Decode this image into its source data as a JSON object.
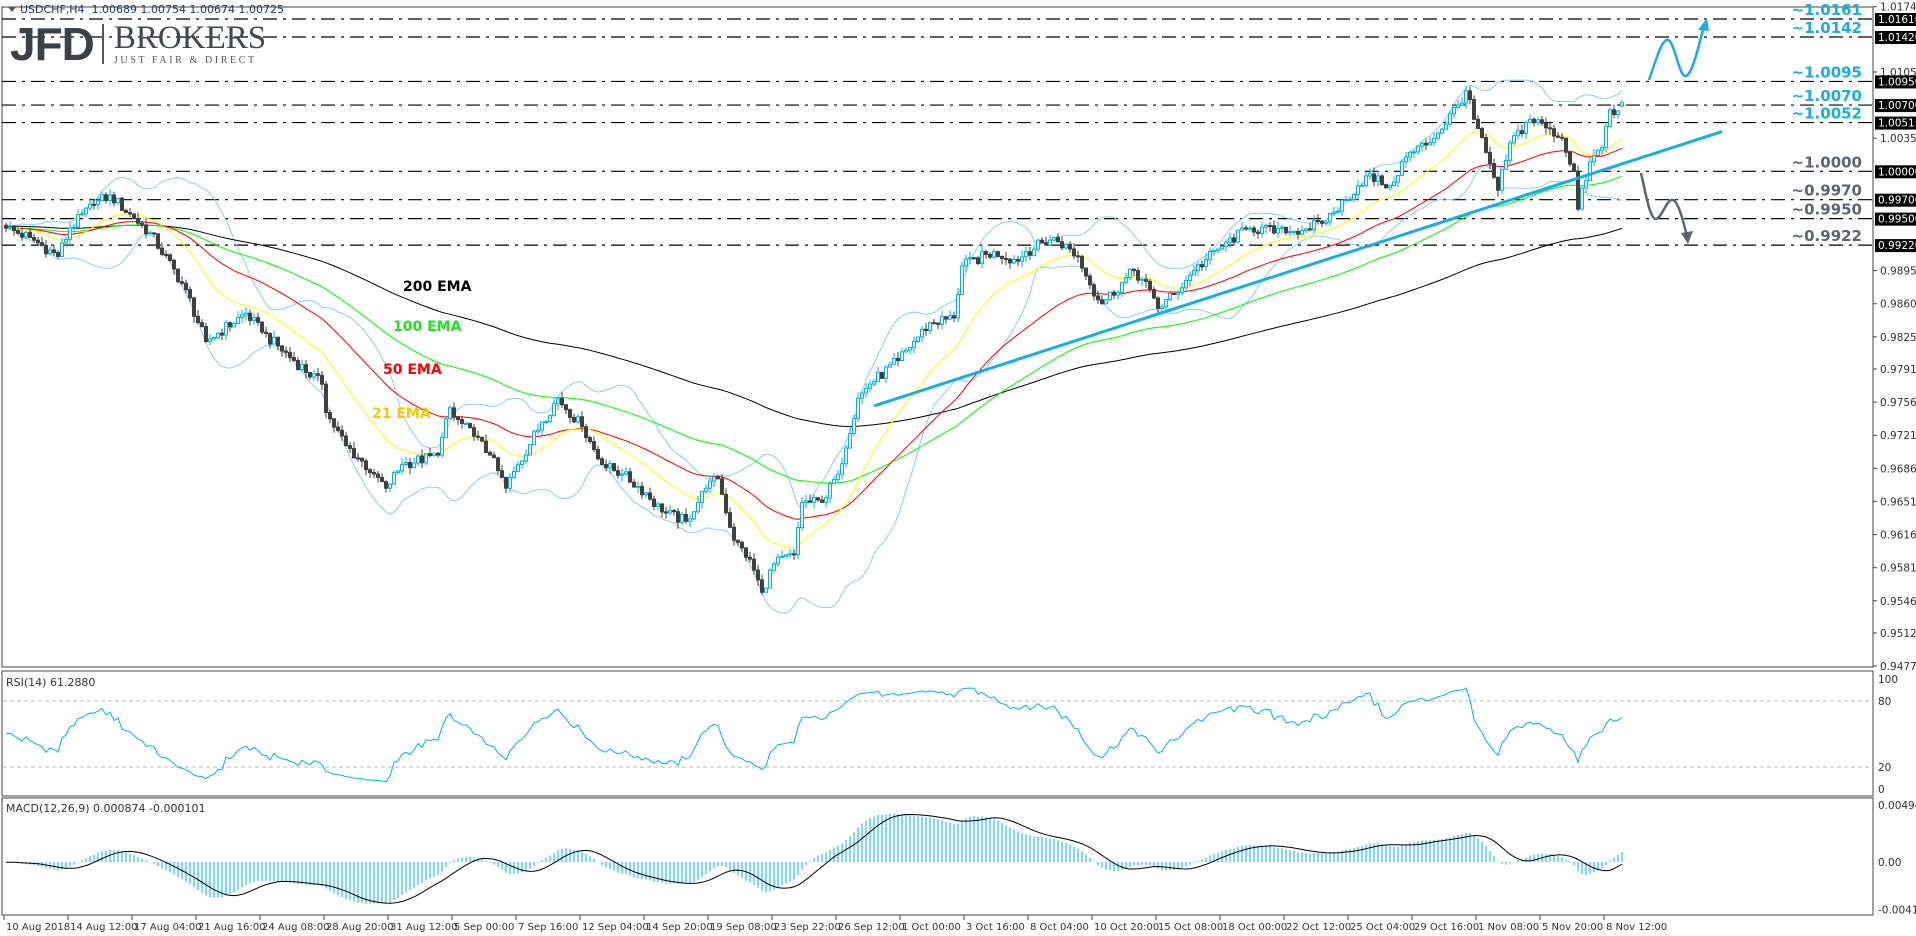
{
  "header": {
    "symbol": "USDCHF,H4",
    "ohlc": "1.00689 1.00754 1.00674 1.00725"
  },
  "logo": {
    "mark": "JFD",
    "name": "BROKERS",
    "tagline": "JUST FAIR & DIRECT"
  },
  "indicators": {
    "rsi_title": "RSI(14) 61.2880",
    "macd_title": "MACD(12,26,9) 0.000874 -0.000101",
    "rsi_axis": [
      "100",
      "80",
      "20",
      "0"
    ],
    "macd_axis": [
      "0.004942",
      "0.00",
      "-0.00413"
    ]
  },
  "ema_labels": [
    {
      "text": "200 EMA",
      "color": "#000000"
    },
    {
      "text": "100 EMA",
      "color": "#22e022"
    },
    {
      "text": "50 EMA",
      "color": "#ff0000"
    },
    {
      "text": "21 EMA",
      "color": "#f5c800"
    }
  ],
  "levels": [
    {
      "label": "~1.0161",
      "box": "1.01610",
      "price": 1.0161,
      "color": "#1aaedb"
    },
    {
      "label": "~1.0142",
      "box": "1.01420",
      "price": 1.0142,
      "color": "#1aaedb"
    },
    {
      "label": "~1.0095",
      "box": "1.00950",
      "price": 1.0095,
      "color": "#1aaedb"
    },
    {
      "label": "~1.0070",
      "box": "1.00700",
      "price": 1.007,
      "color": "#1aaedb"
    },
    {
      "label": "~1.0052",
      "box": "1.00515",
      "price": 1.00515,
      "color": "#1aaedb"
    },
    {
      "label": "~1.0000",
      "box": "1.00000",
      "price": 1.0,
      "color": "#5b6470"
    },
    {
      "label": "~0.9970",
      "box": "0.99700",
      "price": 0.997,
      "color": "#5b6470"
    },
    {
      "label": "~0.9950",
      "box": "0.99500",
      "price": 0.995,
      "color": "#5b6470"
    },
    {
      "label": "~0.9922",
      "box": "0.99220",
      "price": 0.9922,
      "color": "#5b6470"
    }
  ],
  "colors": {
    "bull": "#00b4e0",
    "bear": "#404040",
    "bands": "#87cefa",
    "ema21": "#ffff00",
    "ema50": "#ff0000",
    "ema100": "#00ff00",
    "ema200": "#000000",
    "trendline": "#1aaedb",
    "up_arrow": "#1aaedb",
    "down_arrow": "#5b6470",
    "rsi": "#00b4e0",
    "macd_hist": "#00b4e0",
    "macd_signal": "#000000"
  },
  "chart_data": {
    "type": "candlestick",
    "symbol": "USDCHF",
    "timeframe": "H4",
    "ylim": [
      0.9477,
      1.0174
    ],
    "y_ticks": [
      "1.01740",
      "1.01050",
      "1.00350",
      "0.98950",
      "0.98600",
      "0.98250",
      "0.97910",
      "0.97560",
      "0.97210",
      "0.96860",
      "0.96510",
      "0.96160",
      "0.95810",
      "0.95460",
      "0.95120",
      "0.94770"
    ],
    "x_ticks": [
      "10 Aug 2018",
      "14 Aug 12:00",
      "17 Aug 04:00",
      "21 Aug 16:00",
      "24 Aug 08:00",
      "28 Aug 20:00",
      "31 Aug 12:00",
      "5 Sep 00:00",
      "7 Sep 16:00",
      "12 Sep 04:00",
      "14 Sep 20:00",
      "19 Sep 08:00",
      "23 Sep 22:00",
      "26 Sep 12:00",
      "1 Oct 00:00",
      "3 Oct 16:00",
      "8 Oct 04:00",
      "10 Oct 20:00",
      "15 Oct 08:00",
      "18 Oct 00:00",
      "22 Oct 12:00",
      "25 Oct 04:00",
      "29 Oct 16:00",
      "1 Nov 08:00",
      "5 Nov 20:00",
      "8 Nov 12:00"
    ],
    "bars_per_x_tick": 16,
    "close_path": [
      [
        0,
        0.994
      ],
      [
        6,
        0.993
      ],
      [
        13,
        0.991
      ],
      [
        16,
        0.994
      ],
      [
        22,
        0.9965
      ],
      [
        26,
        0.9975
      ],
      [
        32,
        0.995
      ],
      [
        36,
        0.9935
      ],
      [
        45,
        0.9875
      ],
      [
        48,
        0.984
      ],
      [
        50,
        0.982
      ],
      [
        60,
        0.985
      ],
      [
        64,
        0.983
      ],
      [
        72,
        0.98
      ],
      [
        79,
        0.9775
      ],
      [
        80,
        0.9745
      ],
      [
        85,
        0.971
      ],
      [
        92,
        0.968
      ],
      [
        95,
        0.9665
      ],
      [
        99,
        0.969
      ],
      [
        108,
        0.97
      ],
      [
        111,
        0.975
      ],
      [
        112,
        0.974
      ],
      [
        117,
        0.972
      ],
      [
        121,
        0.97
      ],
      [
        125,
        0.9665
      ],
      [
        128,
        0.969
      ],
      [
        134,
        0.9735
      ],
      [
        138,
        0.976
      ],
      [
        144,
        0.973
      ],
      [
        149,
        0.969
      ],
      [
        154,
        0.968
      ],
      [
        160,
        0.966
      ],
      [
        164,
        0.964
      ],
      [
        170,
        0.963
      ],
      [
        175,
        0.9665
      ],
      [
        178,
        0.9675
      ],
      [
        182,
        0.961
      ],
      [
        186,
        0.959
      ],
      [
        189,
        0.9555
      ],
      [
        192,
        0.9585
      ],
      [
        197,
        0.9595
      ],
      [
        199,
        0.965
      ],
      [
        204,
        0.965
      ],
      [
        208,
        0.968
      ],
      [
        213,
        0.976
      ],
      [
        216,
        0.9775
      ],
      [
        223,
        0.98
      ],
      [
        231,
        0.984
      ],
      [
        237,
        0.9845
      ],
      [
        239,
        0.99
      ],
      [
        247,
        0.9915
      ],
      [
        253,
        0.9905
      ],
      [
        255,
        0.9915
      ],
      [
        262,
        0.993
      ],
      [
        268,
        0.991
      ],
      [
        271,
        0.988
      ],
      [
        274,
        0.986
      ],
      [
        282,
        0.9895
      ],
      [
        286,
        0.9875
      ],
      [
        288,
        0.9855
      ],
      [
        292,
        0.987
      ],
      [
        297,
        0.9895
      ],
      [
        305,
        0.9925
      ],
      [
        311,
        0.994
      ],
      [
        320,
        0.9935
      ],
      [
        329,
        0.9945
      ],
      [
        335,
        0.997
      ],
      [
        340,
        0.9995
      ],
      [
        346,
        0.9985
      ],
      [
        350,
        1.0015
      ],
      [
        357,
        1.0035
      ],
      [
        363,
        1.007
      ],
      [
        365,
        1.0085
      ],
      [
        367,
        1.0055
      ],
      [
        370,
        1.002
      ],
      [
        373,
        0.998
      ],
      [
        376,
        1.003
      ],
      [
        381,
        1.0055
      ],
      [
        386,
        1.0045
      ],
      [
        389,
        1.0035
      ],
      [
        392,
        1.0
      ],
      [
        393,
        0.996
      ],
      [
        396,
        1.001
      ],
      [
        399,
        1.0025
      ],
      [
        401,
        1.0065
      ],
      [
        402,
        1.006
      ],
      [
        404,
        1.00725
      ]
    ],
    "last": {
      "open": 1.00689,
      "high": 1.00754,
      "low": 1.00674,
      "close": 1.00725
    },
    "trendline": [
      [
        217,
        0.9752
      ],
      [
        429,
        1.0042
      ]
    ],
    "rsi_levels": [
      80,
      20
    ],
    "rsi_range": [
      0,
      100
    ],
    "macd_range": [
      -0.00413,
      0.004942
    ]
  }
}
